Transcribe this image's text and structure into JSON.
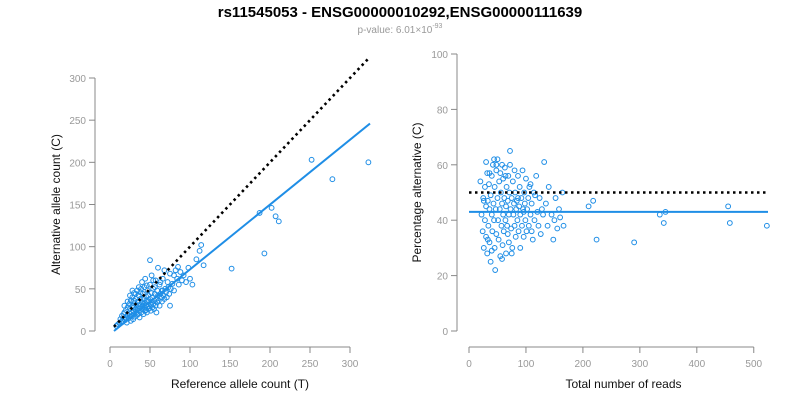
{
  "title": "rs11545053 - ENSG00000010292,ENSG00000111639",
  "subtitle": {
    "prefix": "p-value: 6.01",
    "times": "×",
    "base": "10",
    "exponent": "-93"
  },
  "colors": {
    "series": "#1f8ee6",
    "reference_line": "#000000",
    "axis": "#888888",
    "tick_label": "#999999"
  },
  "chart_data": [
    {
      "type": "scatter",
      "xlabel": "Reference allele count (T)",
      "ylabel": "Alternative allele count (C)",
      "xlim": [
        0,
        325
      ],
      "ylim": [
        0,
        300
      ],
      "xticks": [
        0,
        50,
        100,
        150,
        200,
        250,
        300
      ],
      "yticks": [
        0,
        50,
        100,
        150,
        200,
        250,
        300
      ],
      "reference_line": {
        "style": "dotted",
        "x": [
          5,
          325
        ],
        "y": [
          5,
          325
        ]
      },
      "fit_line": {
        "style": "solid",
        "x": [
          5,
          325
        ],
        "y": [
          0,
          246
        ]
      },
      "points": [
        [
          8,
          6
        ],
        [
          10,
          8
        ],
        [
          12,
          9
        ],
        [
          13,
          14
        ],
        [
          14,
          10
        ],
        [
          15,
          12
        ],
        [
          15,
          18
        ],
        [
          16,
          11
        ],
        [
          17,
          20
        ],
        [
          18,
          14
        ],
        [
          18,
          22
        ],
        [
          19,
          13
        ],
        [
          20,
          25
        ],
        [
          20,
          16
        ],
        [
          21,
          10
        ],
        [
          22,
          19
        ],
        [
          22,
          28
        ],
        [
          23,
          15
        ],
        [
          24,
          21
        ],
        [
          24,
          32
        ],
        [
          25,
          17
        ],
        [
          25,
          26
        ],
        [
          26,
          12
        ],
        [
          26,
          36
        ],
        [
          27,
          22
        ],
        [
          27,
          18
        ],
        [
          28,
          30
        ],
        [
          28,
          40
        ],
        [
          29,
          24
        ],
        [
          29,
          14
        ],
        [
          30,
          28
        ],
        [
          30,
          20
        ],
        [
          30,
          45
        ],
        [
          31,
          33
        ],
        [
          31,
          17
        ],
        [
          32,
          26
        ],
        [
          32,
          38
        ],
        [
          33,
          22
        ],
        [
          33,
          30
        ],
        [
          34,
          48
        ],
        [
          34,
          19
        ],
        [
          35,
          35
        ],
        [
          35,
          27
        ],
        [
          36,
          42
        ],
        [
          36,
          24
        ],
        [
          37,
          31
        ],
        [
          37,
          16
        ],
        [
          38,
          38
        ],
        [
          38,
          28
        ],
        [
          39,
          50
        ],
        [
          39,
          22
        ],
        [
          40,
          34
        ],
        [
          40,
          26
        ],
        [
          41,
          44
        ],
        [
          41,
          30
        ],
        [
          42,
          20
        ],
        [
          42,
          38
        ],
        [
          43,
          52
        ],
        [
          43,
          28
        ],
        [
          44,
          33
        ],
        [
          44,
          24
        ],
        [
          45,
          41
        ],
        [
          45,
          30
        ],
        [
          46,
          36
        ],
        [
          46,
          22
        ],
        [
          47,
          48
        ],
        [
          47,
          29
        ],
        [
          48,
          35
        ],
        [
          48,
          42
        ],
        [
          49,
          27
        ],
        [
          50,
          38
        ],
        [
          50,
          55
        ],
        [
          51,
          31
        ],
        [
          51,
          24
        ],
        [
          52,
          45
        ],
        [
          52,
          34
        ],
        [
          53,
          28
        ],
        [
          53,
          40
        ],
        [
          54,
          50
        ],
        [
          54,
          32
        ],
        [
          55,
          36
        ],
        [
          55,
          26
        ],
        [
          56,
          44
        ],
        [
          57,
          30
        ],
        [
          57,
          60
        ],
        [
          58,
          38
        ],
        [
          59,
          34
        ],
        [
          59,
          48
        ],
        [
          60,
          42
        ],
        [
          61,
          36
        ],
        [
          62,
          55
        ],
        [
          62,
          30
        ],
        [
          63,
          44
        ],
        [
          64,
          40
        ],
        [
          65,
          48
        ],
        [
          65,
          35
        ],
        [
          66,
          62
        ],
        [
          67,
          42
        ],
        [
          68,
          38
        ],
        [
          69,
          50
        ],
        [
          70,
          46
        ],
        [
          71,
          40
        ],
        [
          72,
          58
        ],
        [
          73,
          52
        ],
        [
          74,
          44
        ],
        [
          75,
          68
        ],
        [
          76,
          50
        ],
        [
          78,
          56
        ],
        [
          80,
          48
        ],
        [
          82,
          72
        ],
        [
          84,
          62
        ],
        [
          86,
          55
        ],
        [
          88,
          70
        ],
        [
          90,
          60
        ],
        [
          92,
          66
        ],
        [
          95,
          58
        ],
        [
          98,
          75
        ],
        [
          100,
          62
        ],
        [
          103,
          55
        ],
        [
          108,
          85
        ],
        [
          112,
          95
        ],
        [
          114,
          102
        ],
        [
          117,
          78
        ],
        [
          45,
          25
        ],
        [
          50,
          84
        ],
        [
          54,
          60
        ],
        [
          60,
          75
        ],
        [
          68,
          72
        ],
        [
          75,
          30
        ],
        [
          80,
          66
        ],
        [
          85,
          76
        ],
        [
          32,
          44
        ],
        [
          36,
          52
        ],
        [
          40,
          58
        ],
        [
          44,
          62
        ],
        [
          22,
          35
        ],
        [
          18,
          30
        ],
        [
          25,
          42
        ],
        [
          28,
          48
        ],
        [
          30,
          36
        ],
        [
          35,
          20
        ],
        [
          38,
          46
        ],
        [
          42,
          32
        ],
        [
          46,
          54
        ],
        [
          48,
          26
        ],
        [
          52,
          66
        ],
        [
          56,
          52
        ],
        [
          58,
          22
        ],
        [
          63,
          58
        ],
        [
          66,
          48
        ],
        [
          152,
          74
        ],
        [
          187,
          140
        ],
        [
          193,
          92
        ],
        [
          202,
          146
        ],
        [
          207,
          136
        ],
        [
          211,
          130
        ],
        [
          252,
          203
        ],
        [
          278,
          180
        ],
        [
          323,
          200
        ]
      ]
    },
    {
      "type": "scatter",
      "xlabel": "Total number of reads",
      "ylabel": "Percentage alternative (C)",
      "xlim": [
        0,
        525
      ],
      "ylim": [
        0,
        100
      ],
      "xticks": [
        0,
        100,
        200,
        300,
        400,
        500
      ],
      "yticks": [
        0,
        20,
        40,
        60,
        80,
        100
      ],
      "reference_line": {
        "style": "dotted",
        "x": [
          0,
          525
        ],
        "y": [
          50,
          50
        ]
      },
      "fit_line": {
        "style": "solid",
        "x": [
          0,
          525
        ],
        "y": [
          43,
          43
        ]
      },
      "points": [
        [
          20,
          54
        ],
        [
          22,
          42
        ],
        [
          24,
          36
        ],
        [
          25,
          48
        ],
        [
          26,
          30
        ],
        [
          28,
          52
        ],
        [
          28,
          40
        ],
        [
          30,
          45
        ],
        [
          30,
          34
        ],
        [
          32,
          57
        ],
        [
          32,
          28
        ],
        [
          33,
          47
        ],
        [
          34,
          38
        ],
        [
          35,
          53
        ],
        [
          36,
          44
        ],
        [
          36,
          32
        ],
        [
          38,
          49
        ],
        [
          38,
          25
        ],
        [
          40,
          42
        ],
        [
          40,
          56
        ],
        [
          41,
          36
        ],
        [
          42,
          60
        ],
        [
          43,
          46
        ],
        [
          44,
          40
        ],
        [
          45,
          30
        ],
        [
          45,
          52
        ],
        [
          46,
          22
        ],
        [
          47,
          44
        ],
        [
          48,
          58
        ],
        [
          48,
          35
        ],
        [
          50,
          48
        ],
        [
          50,
          62
        ],
        [
          51,
          40
        ],
        [
          52,
          33
        ],
        [
          53,
          54
        ],
        [
          54,
          44
        ],
        [
          55,
          27
        ],
        [
          56,
          50
        ],
        [
          57,
          38
        ],
        [
          58,
          60
        ],
        [
          58,
          46
        ],
        [
          59,
          31
        ],
        [
          60,
          42
        ],
        [
          60,
          55
        ],
        [
          61,
          36
        ],
        [
          62,
          48
        ],
        [
          63,
          59
        ],
        [
          64,
          40
        ],
        [
          65,
          45
        ],
        [
          65,
          28
        ],
        [
          66,
          52
        ],
        [
          67,
          38
        ],
        [
          68,
          47
        ],
        [
          69,
          56
        ],
        [
          70,
          42
        ],
        [
          70,
          32
        ],
        [
          71,
          50
        ],
        [
          72,
          65
        ],
        [
          73,
          44
        ],
        [
          74,
          37
        ],
        [
          75,
          48
        ],
        [
          76,
          30
        ],
        [
          77,
          54
        ],
        [
          78,
          42
        ],
        [
          79,
          46
        ],
        [
          80,
          38
        ],
        [
          80,
          58
        ],
        [
          81,
          50
        ],
        [
          82,
          34
        ],
        [
          83,
          44
        ],
        [
          84,
          47
        ],
        [
          85,
          40
        ],
        [
          86,
          56
        ],
        [
          87,
          36
        ],
        [
          88,
          45
        ],
        [
          89,
          52
        ],
        [
          90,
          42
        ],
        [
          90,
          30
        ],
        [
          92,
          48
        ],
        [
          93,
          38
        ],
        [
          94,
          58
        ],
        [
          95,
          44
        ],
        [
          96,
          34
        ],
        [
          97,
          50
        ],
        [
          98,
          46
        ],
        [
          99,
          40
        ],
        [
          100,
          55
        ],
        [
          101,
          36
        ],
        [
          102,
          44
        ],
        [
          104,
          48
        ],
        [
          105,
          38
        ],
        [
          106,
          52
        ],
        [
          108,
          42
        ],
        [
          110,
          46
        ],
        [
          112,
          33
        ],
        [
          114,
          50
        ],
        [
          115,
          40
        ],
        [
          118,
          56
        ],
        [
          120,
          43
        ],
        [
          122,
          38
        ],
        [
          124,
          48
        ],
        [
          126,
          35
        ],
        [
          128,
          44
        ],
        [
          130,
          42
        ],
        [
          132,
          61
        ],
        [
          135,
          46
        ],
        [
          138,
          38
        ],
        [
          140,
          52
        ],
        [
          145,
          42
        ],
        [
          148,
          33
        ],
        [
          150,
          40
        ],
        [
          152,
          48
        ],
        [
          155,
          37
        ],
        [
          158,
          44
        ],
        [
          160,
          41
        ],
        [
          164,
          50
        ],
        [
          166,
          38
        ],
        [
          210,
          45
        ],
        [
          218,
          47
        ],
        [
          224,
          33
        ],
        [
          290,
          32
        ],
        [
          335,
          42
        ],
        [
          342,
          39
        ],
        [
          345,
          43
        ],
        [
          455,
          45
        ],
        [
          458,
          39
        ],
        [
          523,
          38
        ],
        [
          30,
          61
        ],
        [
          44,
          62
        ],
        [
          36,
          57
        ],
        [
          48,
          60
        ],
        [
          26,
          47
        ],
        [
          55,
          57
        ],
        [
          64,
          56
        ],
        [
          72,
          60
        ],
        [
          86,
          48
        ],
        [
          96,
          43
        ],
        [
          108,
          53
        ],
        [
          116,
          49
        ],
        [
          75,
          28
        ],
        [
          58,
          26
        ],
        [
          40,
          29
        ],
        [
          33,
          33
        ],
        [
          110,
          36
        ],
        [
          68,
          35
        ]
      ]
    }
  ]
}
